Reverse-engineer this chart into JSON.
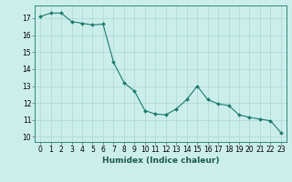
{
  "x": [
    0,
    1,
    2,
    3,
    4,
    5,
    6,
    7,
    8,
    9,
    10,
    11,
    12,
    13,
    14,
    15,
    16,
    17,
    18,
    19,
    20,
    21,
    22,
    23
  ],
  "y": [
    17.1,
    17.3,
    17.3,
    16.8,
    16.7,
    16.6,
    16.65,
    14.4,
    13.2,
    12.7,
    11.55,
    11.35,
    11.3,
    11.65,
    12.2,
    13.0,
    12.2,
    11.95,
    11.85,
    11.3,
    11.15,
    11.05,
    10.95,
    10.25
  ],
  "line_color": "#1a7a6e",
  "marker": "D",
  "marker_size": 2.0,
  "bg_color": "#cceeea",
  "grid_color": "#aad8d3",
  "xlabel": "Humidex (Indice chaleur)",
  "ylim": [
    9.7,
    17.75
  ],
  "xlim": [
    -0.5,
    23.5
  ],
  "yticks": [
    10,
    11,
    12,
    13,
    14,
    15,
    16,
    17
  ],
  "xticks": [
    0,
    1,
    2,
    3,
    4,
    5,
    6,
    7,
    8,
    9,
    10,
    11,
    12,
    13,
    14,
    15,
    16,
    17,
    18,
    19,
    20,
    21,
    22,
    23
  ],
  "font_size_tick": 5.5,
  "font_size_label": 6.5,
  "line_width": 0.8
}
